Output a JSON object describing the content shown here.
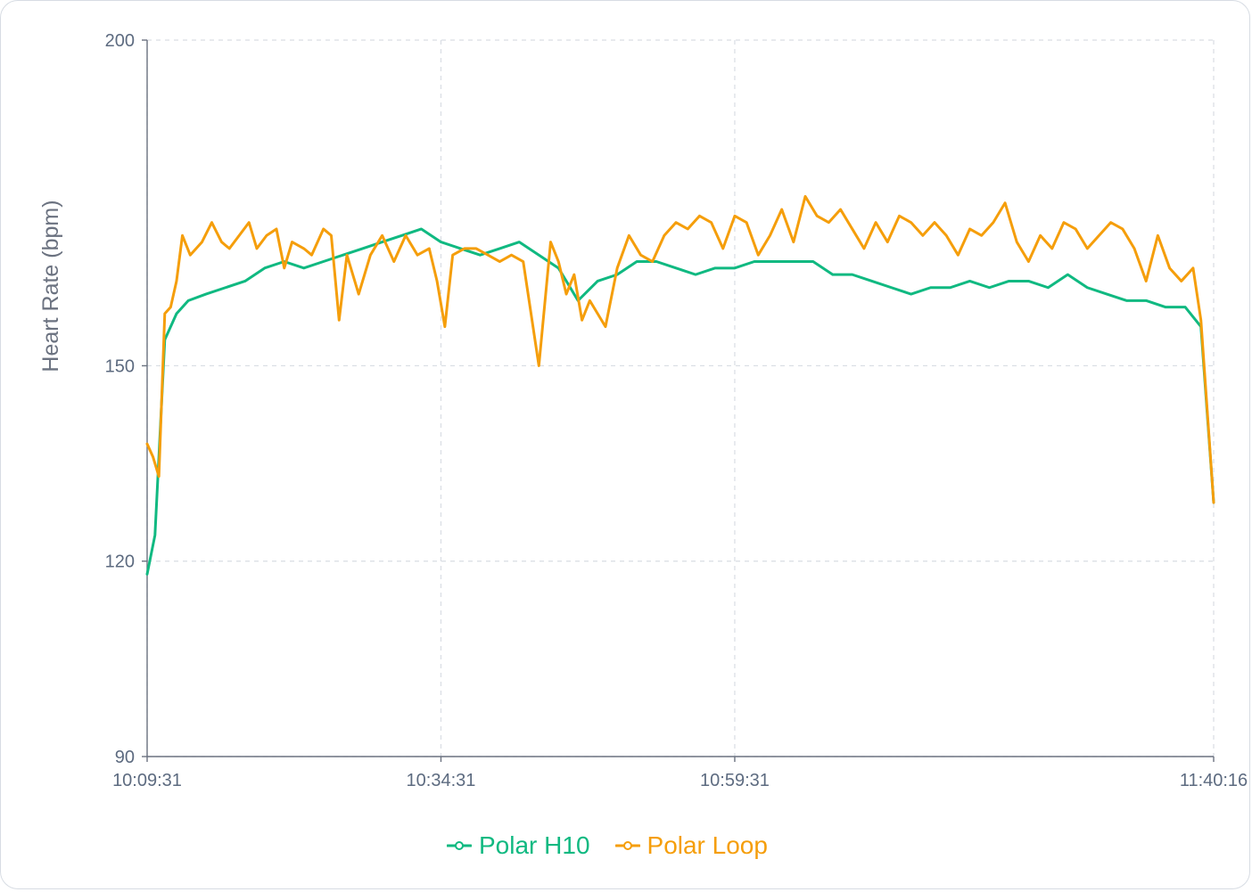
{
  "chart_data": {
    "type": "line",
    "ylabel": "Heart Rate (bpm)",
    "ylim": [
      90,
      200
    ],
    "yticks": [
      90,
      120,
      150,
      200
    ],
    "xticks": [
      {
        "t": 0,
        "label": "10:09:31"
      },
      {
        "t": 1500,
        "label": "10:34:31"
      },
      {
        "t": 3000,
        "label": "10:59:31"
      },
      {
        "t": 5445,
        "label": "11:40:16"
      }
    ],
    "x_unit": "seconds elapsed",
    "xlim": [
      0,
      5445
    ],
    "grid": true,
    "legend_position": "bottom",
    "series": [
      {
        "name": "Polar H10",
        "color": "#10b981",
        "points": [
          [
            0,
            118
          ],
          [
            40,
            124
          ],
          [
            90,
            154
          ],
          [
            150,
            158
          ],
          [
            210,
            160
          ],
          [
            300,
            161
          ],
          [
            400,
            162
          ],
          [
            500,
            163
          ],
          [
            600,
            165
          ],
          [
            700,
            166
          ],
          [
            800,
            165
          ],
          [
            900,
            166
          ],
          [
            1000,
            167
          ],
          [
            1100,
            168
          ],
          [
            1200,
            169
          ],
          [
            1300,
            170
          ],
          [
            1400,
            171
          ],
          [
            1500,
            169
          ],
          [
            1600,
            168
          ],
          [
            1700,
            167
          ],
          [
            1800,
            168
          ],
          [
            1900,
            169
          ],
          [
            2000,
            167
          ],
          [
            2100,
            165
          ],
          [
            2200,
            160
          ],
          [
            2300,
            163
          ],
          [
            2400,
            164
          ],
          [
            2500,
            166
          ],
          [
            2600,
            166
          ],
          [
            2700,
            165
          ],
          [
            2800,
            164
          ],
          [
            2900,
            165
          ],
          [
            3000,
            165
          ],
          [
            3100,
            166
          ],
          [
            3200,
            166
          ],
          [
            3300,
            166
          ],
          [
            3400,
            166
          ],
          [
            3500,
            164
          ],
          [
            3600,
            164
          ],
          [
            3700,
            163
          ],
          [
            3800,
            162
          ],
          [
            3900,
            161
          ],
          [
            4000,
            162
          ],
          [
            4100,
            162
          ],
          [
            4200,
            163
          ],
          [
            4300,
            162
          ],
          [
            4400,
            163
          ],
          [
            4500,
            163
          ],
          [
            4600,
            162
          ],
          [
            4700,
            164
          ],
          [
            4800,
            162
          ],
          [
            4900,
            161
          ],
          [
            5000,
            160
          ],
          [
            5100,
            160
          ],
          [
            5200,
            159
          ],
          [
            5300,
            159
          ],
          [
            5380,
            156
          ],
          [
            5445,
            129
          ]
        ]
      },
      {
        "name": "Polar Loop",
        "color": "#f59e0b",
        "points": [
          [
            0,
            138
          ],
          [
            30,
            136
          ],
          [
            60,
            133
          ],
          [
            90,
            158
          ],
          [
            120,
            159
          ],
          [
            150,
            163
          ],
          [
            180,
            170
          ],
          [
            220,
            167
          ],
          [
            280,
            169
          ],
          [
            330,
            172
          ],
          [
            380,
            169
          ],
          [
            420,
            168
          ],
          [
            470,
            170
          ],
          [
            520,
            172
          ],
          [
            560,
            168
          ],
          [
            610,
            170
          ],
          [
            660,
            171
          ],
          [
            700,
            165
          ],
          [
            740,
            169
          ],
          [
            800,
            168
          ],
          [
            840,
            167
          ],
          [
            900,
            171
          ],
          [
            940,
            170
          ],
          [
            980,
            157
          ],
          [
            1020,
            167
          ],
          [
            1080,
            161
          ],
          [
            1140,
            167
          ],
          [
            1200,
            170
          ],
          [
            1260,
            166
          ],
          [
            1320,
            170
          ],
          [
            1380,
            167
          ],
          [
            1440,
            168
          ],
          [
            1480,
            163
          ],
          [
            1520,
            156
          ],
          [
            1560,
            167
          ],
          [
            1620,
            168
          ],
          [
            1680,
            168
          ],
          [
            1740,
            167
          ],
          [
            1800,
            166
          ],
          [
            1860,
            167
          ],
          [
            1920,
            166
          ],
          [
            1980,
            154
          ],
          [
            2000,
            150
          ],
          [
            2060,
            169
          ],
          [
            2100,
            166
          ],
          [
            2140,
            161
          ],
          [
            2180,
            164
          ],
          [
            2220,
            157
          ],
          [
            2260,
            160
          ],
          [
            2300,
            158
          ],
          [
            2340,
            156
          ],
          [
            2400,
            165
          ],
          [
            2460,
            170
          ],
          [
            2520,
            167
          ],
          [
            2580,
            166
          ],
          [
            2640,
            170
          ],
          [
            2700,
            172
          ],
          [
            2760,
            171
          ],
          [
            2820,
            173
          ],
          [
            2880,
            172
          ],
          [
            2940,
            168
          ],
          [
            3000,
            173
          ],
          [
            3060,
            172
          ],
          [
            3120,
            167
          ],
          [
            3180,
            170
          ],
          [
            3240,
            174
          ],
          [
            3300,
            169
          ],
          [
            3360,
            176
          ],
          [
            3420,
            173
          ],
          [
            3480,
            172
          ],
          [
            3540,
            174
          ],
          [
            3600,
            171
          ],
          [
            3660,
            168
          ],
          [
            3720,
            172
          ],
          [
            3780,
            169
          ],
          [
            3840,
            173
          ],
          [
            3900,
            172
          ],
          [
            3960,
            170
          ],
          [
            4020,
            172
          ],
          [
            4080,
            170
          ],
          [
            4140,
            167
          ],
          [
            4200,
            171
          ],
          [
            4260,
            170
          ],
          [
            4320,
            172
          ],
          [
            4380,
            175
          ],
          [
            4440,
            169
          ],
          [
            4500,
            166
          ],
          [
            4560,
            170
          ],
          [
            4620,
            168
          ],
          [
            4680,
            172
          ],
          [
            4740,
            171
          ],
          [
            4800,
            168
          ],
          [
            4860,
            170
          ],
          [
            4920,
            172
          ],
          [
            4980,
            171
          ],
          [
            5040,
            168
          ],
          [
            5100,
            163
          ],
          [
            5160,
            170
          ],
          [
            5220,
            165
          ],
          [
            5280,
            163
          ],
          [
            5340,
            165
          ],
          [
            5380,
            157
          ],
          [
            5445,
            129
          ]
        ]
      }
    ]
  }
}
